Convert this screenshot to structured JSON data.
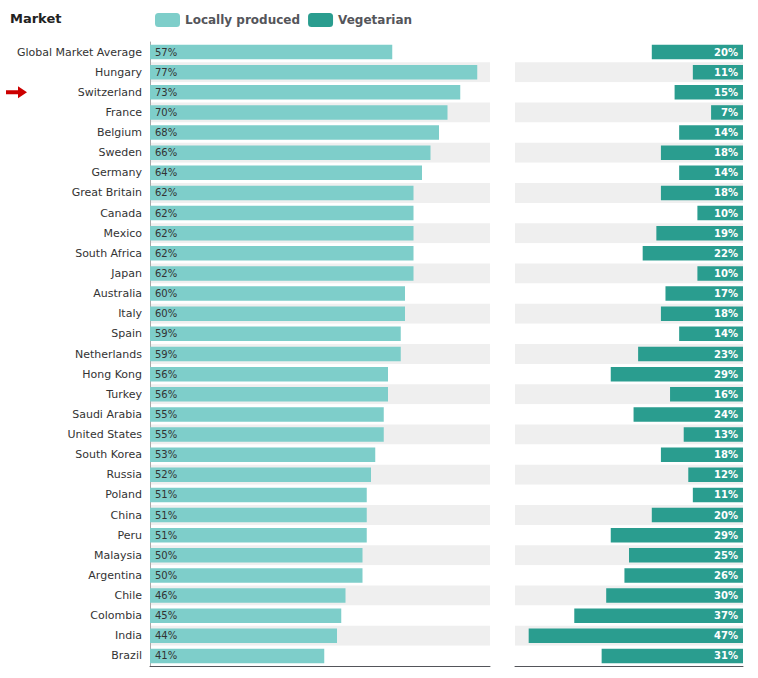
{
  "chart_data": {
    "type": "bar",
    "orientation": "horizontal",
    "ylabel": "Market",
    "categories": [
      "Global Market Average",
      "Hungary",
      "Switzerland",
      "France",
      "Belgium",
      "Sweden",
      "Germany",
      "Great Britain",
      "Canada",
      "Mexico",
      "South Africa",
      "Japan",
      "Australia",
      "Italy",
      "Spain",
      "Netherlands",
      "Hong Kong",
      "Turkey",
      "Saudi Arabia",
      "United States",
      "South Korea",
      "Russia",
      "Poland",
      "China",
      "Peru",
      "Malaysia",
      "Argentina",
      "Chile",
      "Colombia",
      "India",
      "Brazil"
    ],
    "series": [
      {
        "name": "Locally produced",
        "color": "#7ececa",
        "values": [
          57,
          77,
          73,
          70,
          68,
          66,
          64,
          62,
          62,
          62,
          62,
          62,
          60,
          60,
          59,
          59,
          56,
          56,
          55,
          55,
          53,
          52,
          51,
          51,
          51,
          50,
          50,
          46,
          45,
          44,
          41
        ],
        "value_labels": [
          "57%",
          "77%",
          "73%",
          "70%",
          "68%",
          "66%",
          "64%",
          "62%",
          "62%",
          "62%",
          "62%",
          "62%",
          "60%",
          "60%",
          "59%",
          "59%",
          "56%",
          "56%",
          "55%",
          "55%",
          "53%",
          "52%",
          "51%",
          "51%",
          "51%",
          "50%",
          "50%",
          "46%",
          "45%",
          "44%",
          "41%"
        ]
      },
      {
        "name": "Vegetarian",
        "color": "#2a9d8f",
        "axis": "x2",
        "values": [
          20,
          11,
          15,
          7,
          14,
          18,
          14,
          18,
          10,
          19,
          22,
          10,
          17,
          18,
          14,
          23,
          29,
          16,
          24,
          13,
          18,
          12,
          11,
          20,
          29,
          25,
          26,
          30,
          37,
          47,
          31
        ],
        "value_labels": [
          "20%",
          "11%",
          "15%",
          "7%",
          "14%",
          "18%",
          "14%",
          "18%",
          "10%",
          "19%",
          "22%",
          "10%",
          "17%",
          "18%",
          "14%",
          "23%",
          "29%",
          "16%",
          "24%",
          "13%",
          "18%",
          "12%",
          "11%",
          "20%",
          "29%",
          "25%",
          "26%",
          "30%",
          "37%",
          "47%",
          "31%"
        ]
      }
    ],
    "xlim": [
      0,
      80
    ],
    "x2lim": [
      0,
      50
    ],
    "data_labels": true,
    "tick_labels": "y",
    "grid": false,
    "legend": "top",
    "annotations": [
      {
        "category": "Switzerland",
        "color": "#cc0000"
      }
    ]
  }
}
